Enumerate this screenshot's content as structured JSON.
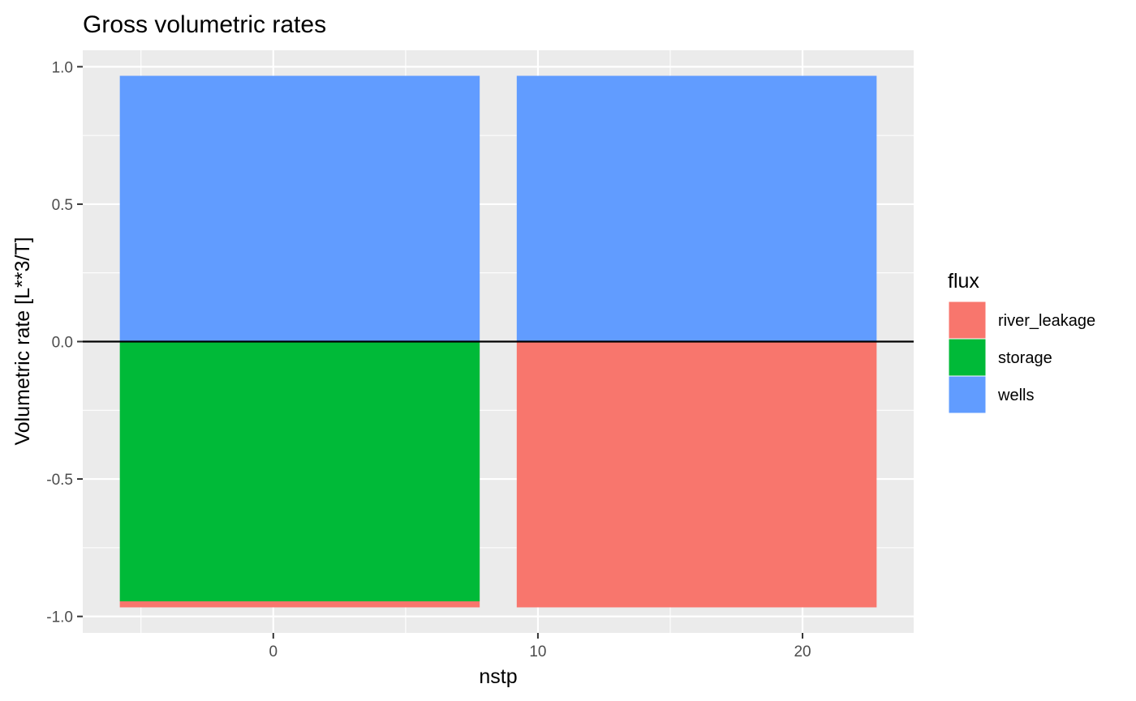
{
  "chart_data": {
    "type": "bar",
    "title": "Gross volumetric rates",
    "xlabel": "nstp",
    "ylabel": "Volumetric rate [L**3/T]",
    "x_ticks": [
      0,
      10,
      20
    ],
    "x_tick_labels": [
      "0",
      "10",
      "20"
    ],
    "y_ticks": [
      -1.0,
      -0.5,
      0.0,
      0.5,
      1.0
    ],
    "y_tick_labels": [
      "-1.0",
      "-0.5",
      "0.0",
      "0.5",
      "1.0"
    ],
    "xlim": [
      -7.2,
      24.2
    ],
    "ylim": [
      -1.06,
      1.06
    ],
    "grid": true,
    "legend": {
      "title": "flux",
      "position": "right",
      "entries": [
        {
          "name": "river_leakage",
          "color": "#F8766D"
        },
        {
          "name": "storage",
          "color": "#00BA38"
        },
        {
          "name": "wells",
          "color": "#619CFF"
        }
      ]
    },
    "bars": [
      {
        "x": 1,
        "width": 13.6,
        "segments": [
          {
            "flux": "wells",
            "value": 0.967
          },
          {
            "flux": "storage",
            "value": -0.945
          },
          {
            "flux": "river_leakage",
            "value": -0.022
          }
        ]
      },
      {
        "x": 16,
        "width": 13.6,
        "segments": [
          {
            "flux": "wells",
            "value": 0.967
          },
          {
            "flux": "river_leakage",
            "value": -0.967
          }
        ]
      }
    ],
    "hline": 0
  }
}
